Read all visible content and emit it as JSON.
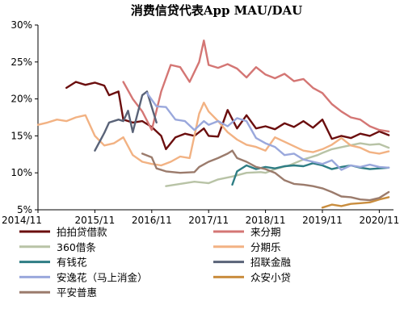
{
  "chart_data": {
    "type": "line",
    "title": "消费信贷代表App MAU/DAU",
    "xlabel": "",
    "ylabel": "",
    "y_unit": "%",
    "ylim": [
      5,
      30
    ],
    "yticks": [
      "30%",
      "25%",
      "20%",
      "15%",
      "10%",
      "5%"
    ],
    "ytick_values": [
      30,
      25,
      20,
      15,
      10,
      5
    ],
    "xlim": [
      "2014-11",
      "2021-02"
    ],
    "xticks": [
      "2014/11",
      "2015/11",
      "2016/11",
      "2017/11",
      "2018/11",
      "2019/11",
      "2020/11"
    ],
    "xtick_values": [
      "2014-11",
      "2015-11",
      "2016-11",
      "2017-11",
      "2018-11",
      "2019-11",
      "2020-11"
    ],
    "grid": false,
    "legend_position": "bottom",
    "series": [
      {
        "name": "拍拍贷借款",
        "color": "#6b0e0e",
        "points": [
          [
            "2015-05",
            21.5
          ],
          [
            "2015-07",
            22.3
          ],
          [
            "2015-09",
            21.9
          ],
          [
            "2015-11",
            22.2
          ],
          [
            "2016-01",
            21.8
          ],
          [
            "2016-02",
            20.5
          ],
          [
            "2016-04",
            21.0
          ],
          [
            "2016-05",
            17.2
          ],
          [
            "2016-07",
            16.8
          ],
          [
            "2016-09",
            17.0
          ],
          [
            "2016-11",
            16.2
          ],
          [
            "2017-01",
            15.0
          ],
          [
            "2017-02",
            13.2
          ],
          [
            "2017-04",
            14.8
          ],
          [
            "2017-06",
            15.3
          ],
          [
            "2017-08",
            15.0
          ],
          [
            "2017-10",
            16.0
          ],
          [
            "2017-11",
            15.0
          ],
          [
            "2018-01",
            14.9
          ],
          [
            "2018-03",
            18.5
          ],
          [
            "2018-05",
            16.0
          ],
          [
            "2018-07",
            17.8
          ],
          [
            "2018-09",
            16.0
          ],
          [
            "2018-11",
            16.3
          ],
          [
            "2019-01",
            15.9
          ],
          [
            "2019-03",
            16.7
          ],
          [
            "2019-05",
            16.2
          ],
          [
            "2019-07",
            17.0
          ],
          [
            "2019-09",
            16.1
          ],
          [
            "2019-11",
            17.2
          ],
          [
            "2020-01",
            14.6
          ],
          [
            "2020-03",
            15.0
          ],
          [
            "2020-05",
            14.7
          ],
          [
            "2020-07",
            15.3
          ],
          [
            "2020-09",
            15.0
          ],
          [
            "2020-11",
            15.6
          ],
          [
            "2021-01",
            15.1
          ]
        ]
      },
      {
        "name": "来分期",
        "color": "#d47674",
        "points": [
          [
            "2016-05",
            22.3
          ],
          [
            "2016-07",
            20.0
          ],
          [
            "2016-09",
            18.3
          ],
          [
            "2016-11",
            15.8
          ],
          [
            "2017-01",
            21.0
          ],
          [
            "2017-03",
            24.6
          ],
          [
            "2017-05",
            24.3
          ],
          [
            "2017-07",
            22.3
          ],
          [
            "2017-09",
            25.0
          ],
          [
            "2017-10",
            27.9
          ],
          [
            "2017-11",
            24.6
          ],
          [
            "2018-01",
            24.2
          ],
          [
            "2018-03",
            24.7
          ],
          [
            "2018-05",
            24.1
          ],
          [
            "2018-07",
            22.9
          ],
          [
            "2018-09",
            24.3
          ],
          [
            "2018-11",
            23.3
          ],
          [
            "2019-01",
            22.8
          ],
          [
            "2019-03",
            23.4
          ],
          [
            "2019-05",
            22.4
          ],
          [
            "2019-07",
            22.7
          ],
          [
            "2019-09",
            21.5
          ],
          [
            "2019-11",
            20.8
          ],
          [
            "2020-01",
            19.3
          ],
          [
            "2020-03",
            18.3
          ],
          [
            "2020-05",
            17.5
          ],
          [
            "2020-07",
            17.2
          ],
          [
            "2020-09",
            16.3
          ],
          [
            "2020-11",
            15.8
          ],
          [
            "2021-01",
            15.6
          ]
        ]
      },
      {
        "name": "360借条",
        "color": "#b8c3a6",
        "points": [
          [
            "2017-02",
            8.2
          ],
          [
            "2017-05",
            8.5
          ],
          [
            "2017-08",
            8.8
          ],
          [
            "2017-11",
            8.6
          ],
          [
            "2018-01",
            9.1
          ],
          [
            "2018-04",
            9.5
          ],
          [
            "2018-07",
            10.0
          ],
          [
            "2018-10",
            10.1
          ],
          [
            "2018-11",
            10.0
          ],
          [
            "2019-01",
            10.5
          ],
          [
            "2019-04",
            11.0
          ],
          [
            "2019-07",
            11.8
          ],
          [
            "2019-10",
            12.4
          ],
          [
            "2019-11",
            12.7
          ],
          [
            "2020-01",
            13.2
          ],
          [
            "2020-04",
            13.6
          ],
          [
            "2020-07",
            14.0
          ],
          [
            "2020-09",
            13.8
          ],
          [
            "2020-11",
            13.9
          ],
          [
            "2021-01",
            13.4
          ]
        ]
      },
      {
        "name": "分期乐",
        "color": "#f2b283",
        "points": [
          [
            "2014-11",
            16.5
          ],
          [
            "2015-01",
            16.8
          ],
          [
            "2015-03",
            17.2
          ],
          [
            "2015-05",
            17.0
          ],
          [
            "2015-07",
            17.5
          ],
          [
            "2015-09",
            17.8
          ],
          [
            "2015-11",
            15.0
          ],
          [
            "2016-01",
            13.7
          ],
          [
            "2016-03",
            14.0
          ],
          [
            "2016-05",
            14.8
          ],
          [
            "2016-07",
            12.4
          ],
          [
            "2016-09",
            11.5
          ],
          [
            "2016-11",
            11.2
          ],
          [
            "2017-01",
            11.0
          ],
          [
            "2017-03",
            11.5
          ],
          [
            "2017-05",
            12.2
          ],
          [
            "2017-07",
            12.0
          ],
          [
            "2017-09",
            18.0
          ],
          [
            "2017-10",
            19.5
          ],
          [
            "2017-11",
            18.3
          ],
          [
            "2018-01",
            17.0
          ],
          [
            "2018-03",
            15.5
          ],
          [
            "2018-05",
            14.5
          ],
          [
            "2018-07",
            13.8
          ],
          [
            "2018-09",
            13.5
          ],
          [
            "2018-11",
            13.0
          ],
          [
            "2019-01",
            14.8
          ],
          [
            "2019-03",
            14.2
          ],
          [
            "2019-05",
            13.6
          ],
          [
            "2019-07",
            13.0
          ],
          [
            "2019-09",
            12.8
          ],
          [
            "2019-11",
            13.2
          ],
          [
            "2020-01",
            13.8
          ],
          [
            "2020-03",
            14.7
          ],
          [
            "2020-05",
            13.7
          ],
          [
            "2020-07",
            13.4
          ],
          [
            "2020-09",
            12.8
          ],
          [
            "2020-11",
            12.6
          ],
          [
            "2021-01",
            12.9
          ]
        ]
      },
      {
        "name": "有钱花",
        "color": "#2e7d84",
        "points": [
          [
            "2018-04",
            8.4
          ],
          [
            "2018-05",
            10.2
          ],
          [
            "2018-07",
            11.0
          ],
          [
            "2018-09",
            10.5
          ],
          [
            "2018-11",
            10.8
          ],
          [
            "2019-01",
            10.6
          ],
          [
            "2019-03",
            10.9
          ],
          [
            "2019-05",
            11.0
          ],
          [
            "2019-07",
            10.9
          ],
          [
            "2019-09",
            11.3
          ],
          [
            "2019-11",
            11.0
          ],
          [
            "2020-01",
            10.5
          ],
          [
            "2020-03",
            10.8
          ],
          [
            "2020-05",
            11.0
          ],
          [
            "2020-07",
            10.7
          ],
          [
            "2020-09",
            10.5
          ],
          [
            "2020-11",
            10.6
          ],
          [
            "2021-01",
            10.7
          ]
        ]
      },
      {
        "name": "招联金融",
        "color": "#5a6378",
        "points": [
          [
            "2015-11",
            13.0
          ],
          [
            "2016-01",
            15.4
          ],
          [
            "2016-02",
            16.8
          ],
          [
            "2016-04",
            17.2
          ],
          [
            "2016-05",
            17.0
          ],
          [
            "2016-06",
            18.4
          ],
          [
            "2016-07",
            15.5
          ],
          [
            "2016-09",
            20.5
          ],
          [
            "2016-10",
            21.0
          ],
          [
            "2016-12",
            16.8
          ]
        ]
      },
      {
        "name": "安逸花（马上消金）",
        "color": "#9aa8dc",
        "points": [
          [
            "2016-10",
            20.8
          ],
          [
            "2016-12",
            19.0
          ],
          [
            "2017-02",
            18.9
          ],
          [
            "2017-04",
            17.2
          ],
          [
            "2017-06",
            17.0
          ],
          [
            "2017-08",
            15.8
          ],
          [
            "2017-10",
            17.0
          ],
          [
            "2017-11",
            16.5
          ],
          [
            "2018-01",
            17.0
          ],
          [
            "2018-03",
            16.3
          ],
          [
            "2018-05",
            17.4
          ],
          [
            "2018-07",
            17.0
          ],
          [
            "2018-09",
            14.7
          ],
          [
            "2018-11",
            14.0
          ],
          [
            "2019-01",
            13.5
          ],
          [
            "2019-03",
            12.4
          ],
          [
            "2019-05",
            12.6
          ],
          [
            "2019-07",
            11.8
          ],
          [
            "2019-09",
            11.5
          ],
          [
            "2019-11",
            11.2
          ],
          [
            "2020-01",
            11.7
          ],
          [
            "2020-03",
            10.4
          ],
          [
            "2020-05",
            11.0
          ],
          [
            "2020-07",
            10.8
          ],
          [
            "2020-09",
            11.1
          ],
          [
            "2020-11",
            10.8
          ],
          [
            "2021-01",
            10.7
          ]
        ]
      },
      {
        "name": "众安小贷",
        "color": "#c98d3e",
        "points": [
          [
            "2019-11",
            5.3
          ],
          [
            "2020-01",
            5.7
          ],
          [
            "2020-03",
            5.5
          ],
          [
            "2020-05",
            5.8
          ],
          [
            "2020-07",
            5.9
          ],
          [
            "2020-09",
            6.0
          ],
          [
            "2020-11",
            6.4
          ],
          [
            "2021-01",
            6.7
          ]
        ]
      },
      {
        "name": "平安普惠",
        "color": "#9b7b6c",
        "points": [
          [
            "2016-09",
            12.6
          ],
          [
            "2016-11",
            12.1
          ],
          [
            "2016-12",
            10.6
          ],
          [
            "2017-02",
            10.2
          ],
          [
            "2017-05",
            10.0
          ],
          [
            "2017-08",
            10.1
          ],
          [
            "2017-09",
            10.8
          ],
          [
            "2017-11",
            11.5
          ],
          [
            "2018-01",
            12.0
          ],
          [
            "2018-03",
            12.6
          ],
          [
            "2018-04",
            13.0
          ],
          [
            "2018-05",
            12.0
          ],
          [
            "2018-07",
            11.5
          ],
          [
            "2018-09",
            10.8
          ],
          [
            "2018-11",
            10.5
          ],
          [
            "2019-01",
            10.0
          ],
          [
            "2019-03",
            9.0
          ],
          [
            "2019-05",
            8.5
          ],
          [
            "2019-07",
            8.4
          ],
          [
            "2019-09",
            8.2
          ],
          [
            "2019-11",
            7.9
          ],
          [
            "2020-01",
            7.4
          ],
          [
            "2020-03",
            6.8
          ],
          [
            "2020-05",
            6.7
          ],
          [
            "2020-07",
            6.4
          ],
          [
            "2020-09",
            6.3
          ],
          [
            "2020-11",
            6.6
          ],
          [
            "2021-01",
            7.4
          ]
        ]
      }
    ]
  }
}
